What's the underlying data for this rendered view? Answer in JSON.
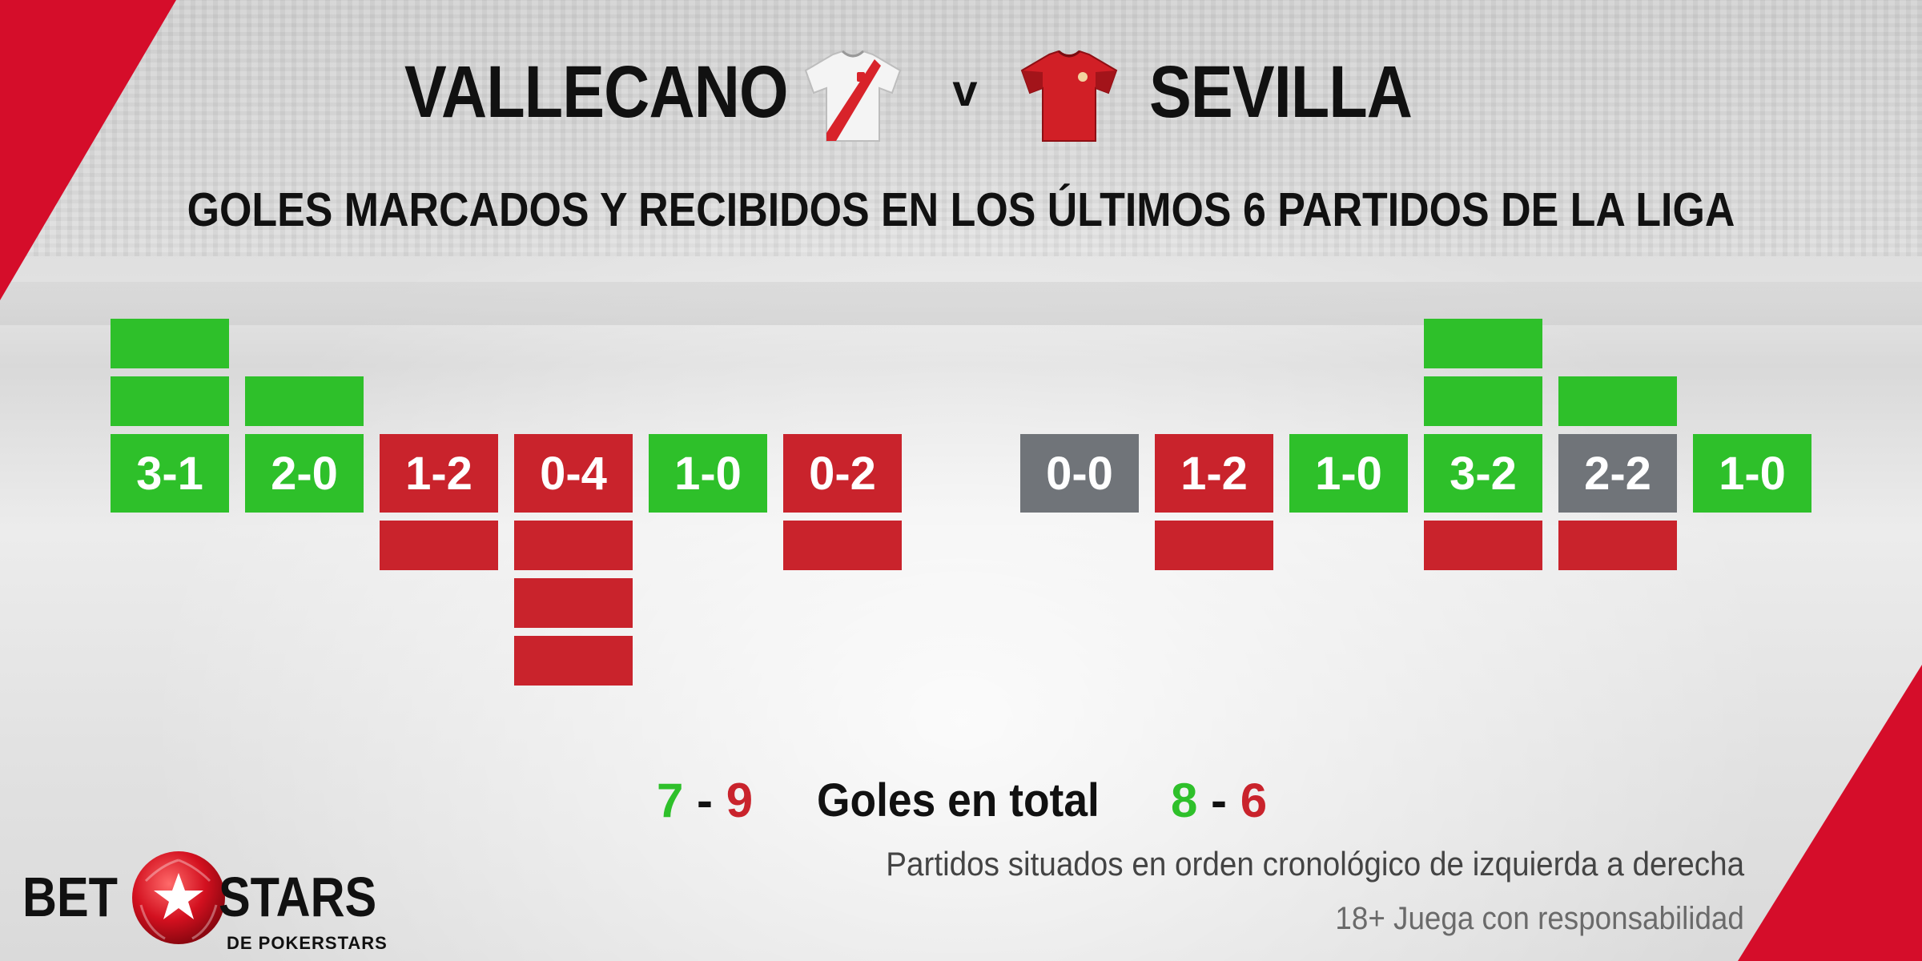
{
  "header": {
    "home_team": "VALLECANO",
    "away_team": "SEVILLA",
    "versus": "v",
    "subtitle": "GOLES MARCADOS Y RECIBIDOS EN LOS ÚLTIMOS 6 PARTIDOS DE LA LIGA"
  },
  "icons": {
    "home_shirt": "jersey-icon",
    "away_shirt": "jersey-icon",
    "logo_ball": "football-star-icon"
  },
  "colors": {
    "win": "#2ec02a",
    "loss": "#c9232c",
    "draw": "#707479",
    "accent": "#d50d2a"
  },
  "chart_data": {
    "type": "bar",
    "title": "GOLES MARCADOS Y RECIBIDOS EN LOS ÚLTIMOS 6 PARTIDOS DE LA LIGA",
    "note": "Partidos situados en orden cronológico de izquierda a derecha",
    "teams": [
      {
        "name": "VALLECANO",
        "matches": [
          {
            "score": "3-1",
            "scored": 3,
            "conceded": 1,
            "result": "win"
          },
          {
            "score": "2-0",
            "scored": 2,
            "conceded": 0,
            "result": "win"
          },
          {
            "score": "1-2",
            "scored": 1,
            "conceded": 2,
            "result": "loss"
          },
          {
            "score": "0-4",
            "scored": 0,
            "conceded": 4,
            "result": "loss"
          },
          {
            "score": "1-0",
            "scored": 1,
            "conceded": 0,
            "result": "win"
          },
          {
            "score": "0-2",
            "scored": 0,
            "conceded": 2,
            "result": "loss"
          }
        ],
        "total_scored": "7",
        "total_conceded": "9"
      },
      {
        "name": "SEVILLA",
        "matches": [
          {
            "score": "0-0",
            "scored": 0,
            "conceded": 0,
            "result": "draw"
          },
          {
            "score": "1-2",
            "scored": 1,
            "conceded": 2,
            "result": "loss"
          },
          {
            "score": "1-0",
            "scored": 1,
            "conceded": 0,
            "result": "win"
          },
          {
            "score": "3-2",
            "scored": 3,
            "conceded": 2,
            "result": "win"
          },
          {
            "score": "2-2",
            "scored": 2,
            "conceded": 2,
            "result": "draw"
          },
          {
            "score": "1-0",
            "scored": 1,
            "conceded": 0,
            "result": "win"
          }
        ],
        "total_scored": "8",
        "total_conceded": "6"
      }
    ]
  },
  "totals": {
    "label": "Goles en total",
    "dash": "-"
  },
  "footer": {
    "note": "Partidos situados en orden cronológico de izquierda a derecha",
    "disclaimer": "18+ Juega con responsabilidad",
    "logo_bet": "BET",
    "logo_stars": "STARS",
    "logo_sub": "DE POKERSTARS"
  }
}
